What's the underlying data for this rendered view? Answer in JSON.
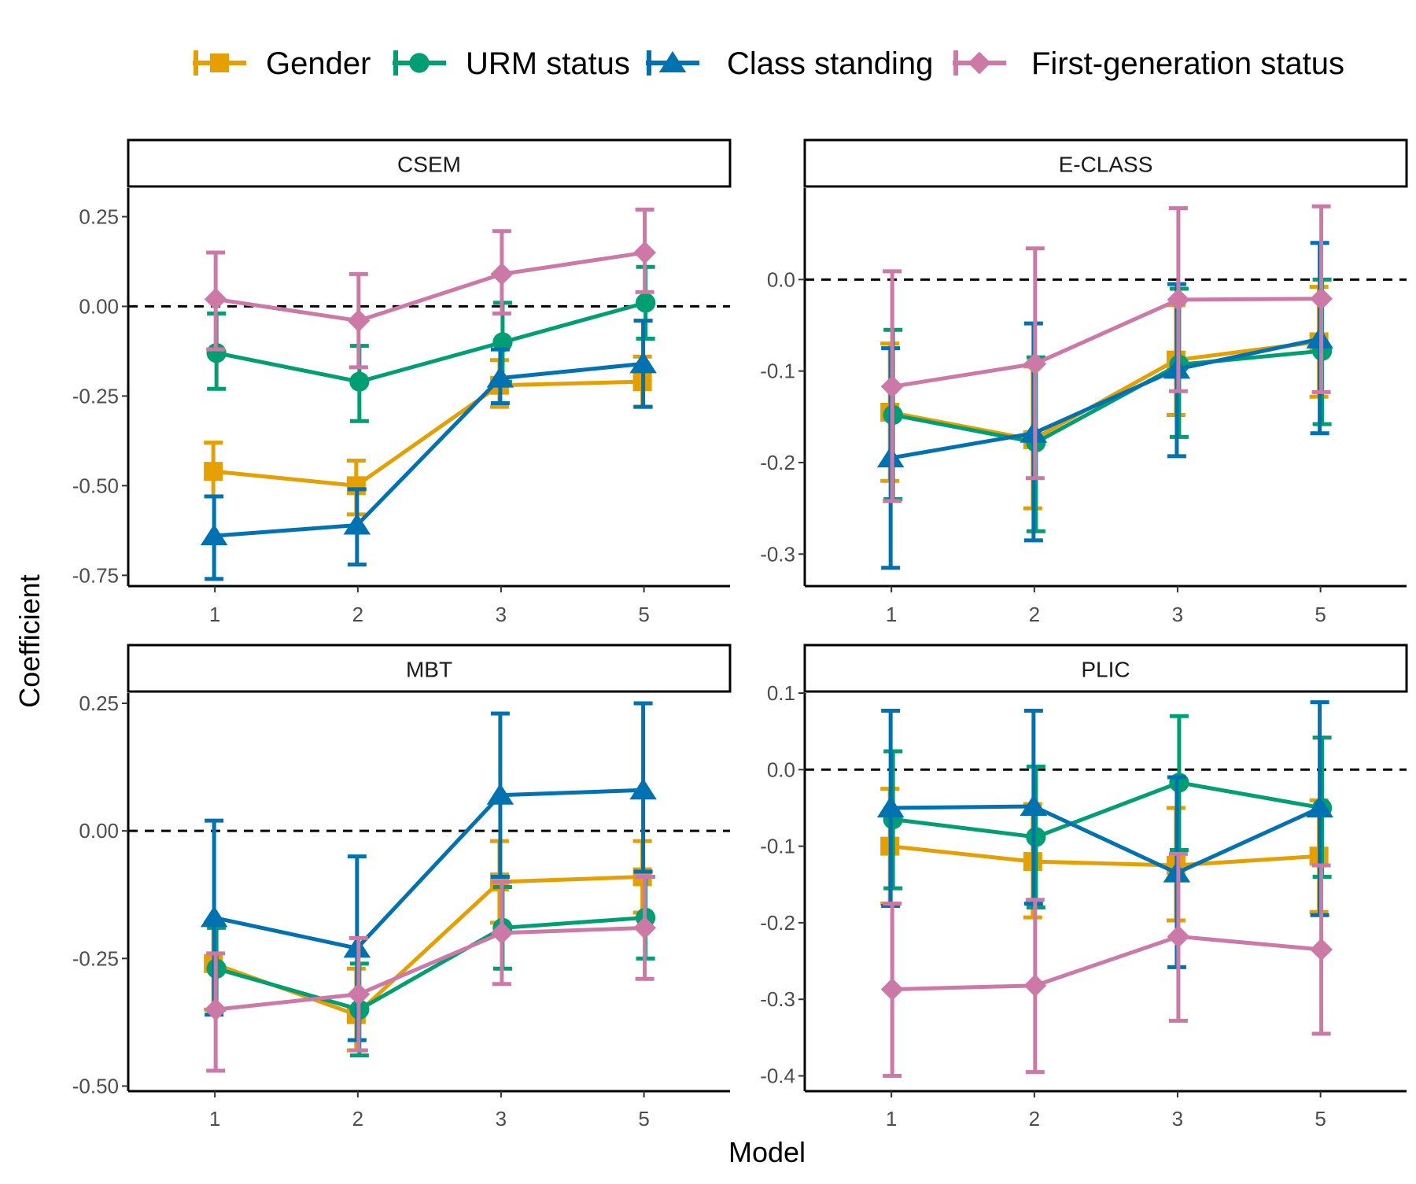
{
  "chart_data": {
    "type": "line",
    "xlabel": "Model",
    "ylabel": "Coefficient",
    "x_categories": [
      "1",
      "2",
      "3",
      "5"
    ],
    "legend_position": "top",
    "reference_line": 0,
    "series": [
      {
        "name": "Gender",
        "color": "#E69F00",
        "marker": "square"
      },
      {
        "name": "URM status",
        "color": "#009E73",
        "marker": "circle"
      },
      {
        "name": "Class standing",
        "color": "#0072B2",
        "marker": "triangle"
      },
      {
        "name": "First-generation status",
        "color": "#CC79A7",
        "marker": "diamond"
      }
    ],
    "panels": [
      {
        "title": "CSEM",
        "ylim": [
          -0.78,
          0.33
        ],
        "yticks": [
          0.25,
          0,
          -0.25,
          -0.5,
          -0.75
        ],
        "ytick_labels": [
          "0.25",
          "0.00",
          "-0.25",
          "-0.50",
          "-0.75"
        ],
        "data": {
          "Gender": [
            [
              -0.46,
              -0.53,
              -0.38
            ],
            [
              -0.5,
              -0.58,
              -0.43
            ],
            [
              -0.22,
              -0.28,
              -0.15
            ],
            [
              -0.21,
              -0.28,
              -0.14
            ]
          ],
          "URM status": [
            [
              -0.13,
              -0.23,
              -0.02
            ],
            [
              -0.21,
              -0.32,
              -0.11
            ],
            [
              -0.1,
              -0.21,
              0.01
            ],
            [
              0.01,
              -0.09,
              0.11
            ]
          ],
          "Class standing": [
            [
              -0.64,
              -0.76,
              -0.53
            ],
            [
              -0.61,
              -0.72,
              -0.51
            ],
            [
              -0.2,
              -0.27,
              -0.12
            ],
            [
              -0.16,
              -0.28,
              -0.04
            ]
          ],
          "First-generation status": [
            [
              0.02,
              -0.12,
              0.15
            ],
            [
              -0.04,
              -0.17,
              0.09
            ],
            [
              0.09,
              -0.02,
              0.21
            ],
            [
              0.15,
              0.04,
              0.27
            ]
          ]
        }
      },
      {
        "title": "E-CLASS",
        "ylim": [
          -0.335,
          0.1
        ],
        "yticks": [
          0,
          -0.1,
          -0.2,
          -0.3
        ],
        "ytick_labels": [
          "0.0",
          "-0.1",
          "-0.2",
          "-0.3"
        ],
        "data": {
          "Gender": [
            [
              -0.145,
              -0.22,
              -0.07
            ],
            [
              -0.175,
              -0.25,
              -0.095
            ],
            [
              -0.088,
              -0.148,
              -0.028
            ],
            [
              -0.068,
              -0.128,
              -0.008
            ]
          ],
          "URM status": [
            [
              -0.148,
              -0.24,
              -0.055
            ],
            [
              -0.178,
              -0.275,
              -0.085
            ],
            [
              -0.093,
              -0.172,
              -0.01
            ],
            [
              -0.078,
              -0.158,
              0.0
            ]
          ],
          "Class standing": [
            [
              -0.195,
              -0.315,
              -0.075
            ],
            [
              -0.168,
              -0.285,
              -0.048
            ],
            [
              -0.098,
              -0.193,
              -0.005
            ],
            [
              -0.065,
              -0.168,
              0.04
            ]
          ],
          "First-generation status": [
            [
              -0.117,
              -0.242,
              0.009
            ],
            [
              -0.092,
              -0.217,
              0.034
            ],
            [
              -0.022,
              -0.122,
              0.078
            ],
            [
              -0.021,
              -0.123,
              0.08
            ]
          ]
        }
      },
      {
        "title": "MBT",
        "ylim": [
          -0.51,
          0.27
        ],
        "yticks": [
          0.25,
          0,
          -0.25,
          -0.5
        ],
        "ytick_labels": [
          "0.25",
          "0.00",
          "-0.25",
          "-0.50"
        ],
        "data": {
          "Gender": [
            [
              -0.26,
              -0.35,
              -0.18
            ],
            [
              -0.36,
              -0.43,
              -0.27
            ],
            [
              -0.1,
              -0.18,
              -0.02
            ],
            [
              -0.09,
              -0.16,
              -0.02
            ]
          ],
          "URM status": [
            [
              -0.27,
              -0.35,
              -0.19
            ],
            [
              -0.35,
              -0.44,
              -0.26
            ],
            [
              -0.19,
              -0.27,
              -0.11
            ],
            [
              -0.17,
              -0.25,
              -0.09
            ]
          ],
          "Class standing": [
            [
              -0.17,
              -0.36,
              0.02
            ],
            [
              -0.23,
              -0.41,
              -0.05
            ],
            [
              0.07,
              -0.09,
              0.23
            ],
            [
              0.08,
              -0.08,
              0.25
            ]
          ],
          "First-generation status": [
            [
              -0.35,
              -0.47,
              -0.24
            ],
            [
              -0.32,
              -0.43,
              -0.21
            ],
            [
              -0.2,
              -0.3,
              -0.1
            ],
            [
              -0.19,
              -0.29,
              -0.09
            ]
          ]
        }
      },
      {
        "title": "PLIC",
        "ylim": [
          -0.42,
          0.1
        ],
        "yticks": [
          0.1,
          0,
          -0.1,
          -0.2,
          -0.3,
          -0.4
        ],
        "ytick_labels": [
          "0.1",
          "0.0",
          "-0.1",
          "-0.2",
          "-0.3",
          "-0.4"
        ],
        "data": {
          "Gender": [
            [
              -0.1,
              -0.175,
              -0.025
            ],
            [
              -0.12,
              -0.193,
              -0.045
            ],
            [
              -0.125,
              -0.197,
              -0.05
            ],
            [
              -0.113,
              -0.186,
              -0.04
            ]
          ],
          "URM status": [
            [
              -0.065,
              -0.155,
              0.024
            ],
            [
              -0.088,
              -0.18,
              0.004
            ],
            [
              -0.017,
              -0.105,
              0.07
            ],
            [
              -0.05,
              -0.14,
              0.042
            ]
          ],
          "Class standing": [
            [
              -0.05,
              -0.178,
              0.077
            ],
            [
              -0.048,
              -0.175,
              0.077
            ],
            [
              -0.135,
              -0.258,
              -0.01
            ],
            [
              -0.05,
              -0.19,
              0.088
            ]
          ],
          "First-generation status": [
            [
              -0.287,
              -0.4,
              -0.175
            ],
            [
              -0.282,
              -0.395,
              -0.17
            ],
            [
              -0.218,
              -0.328,
              -0.11
            ],
            [
              -0.235,
              -0.345,
              -0.125
            ]
          ]
        }
      }
    ]
  }
}
